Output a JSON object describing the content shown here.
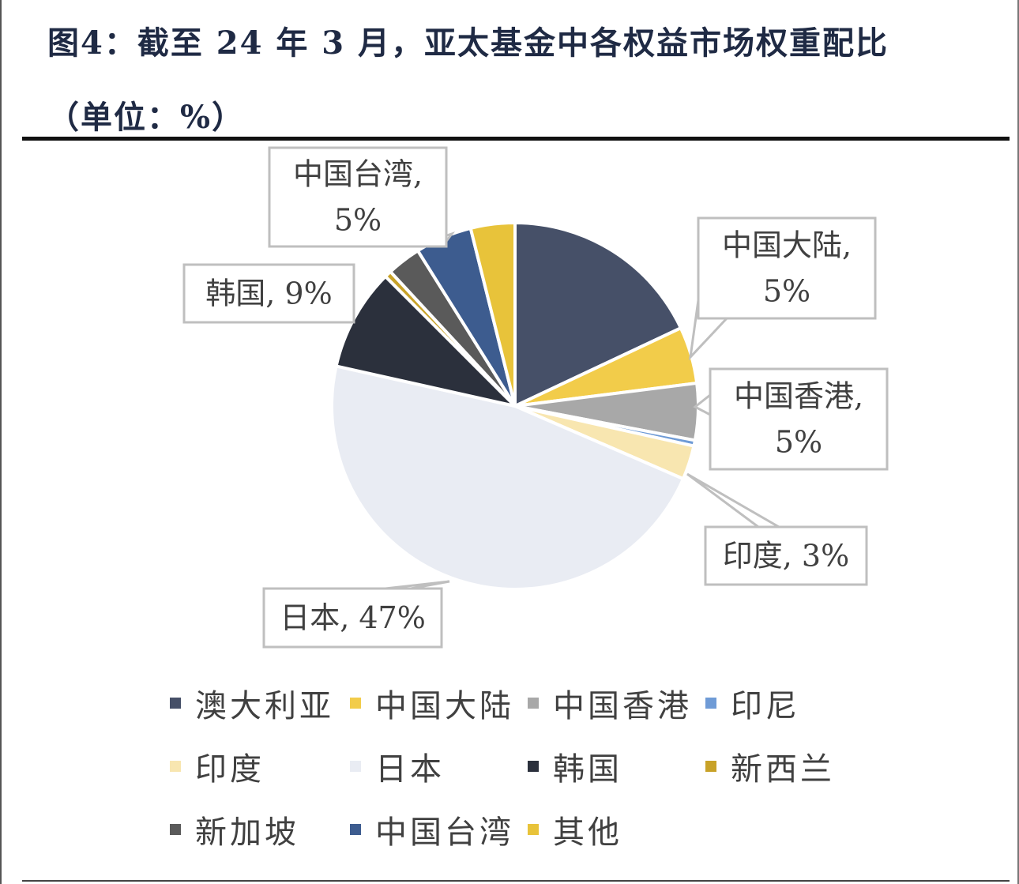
{
  "title": {
    "line1": "图4：截至 24 年 3 月，亚太基金中各权益市场权重配比",
    "line2": "（单位：%）"
  },
  "chart_data": {
    "type": "pie",
    "title": "图4：截至 24 年 3 月，亚太基金中各权益市场权重配比（单位：%）",
    "unit": "%",
    "categories": [
      "澳大利亚",
      "中国大陆",
      "中国香港",
      "印尼",
      "印度",
      "日本",
      "韩国",
      "新西兰",
      "新加坡",
      "中国台湾",
      "其他"
    ],
    "values": [
      18,
      5,
      5,
      0.5,
      3,
      47,
      9,
      0.6,
      3,
      5,
      3.9
    ],
    "colors": [
      "#465068",
      "#f2cc4a",
      "#a8a8a8",
      "#6f9bd6",
      "#f8e6b0",
      "#e9ecf3",
      "#2b303c",
      "#c8a228",
      "#5a5a5a",
      "#3d5c8f",
      "#e8c33a"
    ],
    "data_labels": [
      {
        "category": "中国台湾",
        "line1": "中国台湾,",
        "line2": "5%"
      },
      {
        "category": "中国大陆",
        "line1": "中国大陆,",
        "line2": "5%"
      },
      {
        "category": "韩国",
        "line1": "韩国, 9%",
        "line2": ""
      },
      {
        "category": "中国香港",
        "line1": "中国香港,",
        "line2": "5%"
      },
      {
        "category": "印度",
        "line1": "印度, 3%",
        "line2": ""
      },
      {
        "category": "日本",
        "line1": "日本, 47%",
        "line2": ""
      }
    ],
    "legend": {
      "placement": "bottom",
      "entries": [
        "澳大利亚",
        "中国大陆",
        "中国香港",
        "印尼",
        "印度",
        "日本",
        "韩国",
        "新西兰",
        "新加坡",
        "中国台湾",
        "其他"
      ]
    }
  }
}
